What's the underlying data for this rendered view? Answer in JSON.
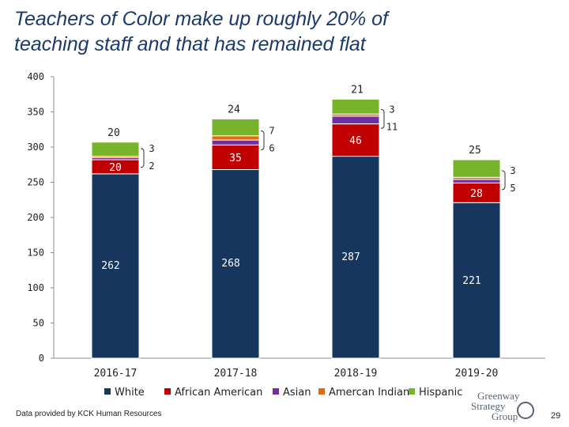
{
  "title_lines": [
    "Teachers of Color make up roughly 20% of",
    "teaching staff and that has remained flat"
  ],
  "source_note": "Data provided by KCK Human Resources",
  "logo": {
    "line1": "Greenway",
    "line2": "Strategy",
    "line3": "Group"
  },
  "page_number": "29",
  "colors": {
    "White": "#17365d",
    "African American": "#c00000",
    "Asian": "#7030a0",
    "Amercan Indian": "#e36c09",
    "Hispanic": "#77b32b"
  },
  "chart_data": {
    "type": "bar",
    "stacked": true,
    "title": "Teachers of Color make up roughly 20% of teaching staff and that has remained flat",
    "categories": [
      "2016-17",
      "2017-18",
      "2018-19",
      "2019-20"
    ],
    "ylim": [
      0,
      400
    ],
    "yticks": [
      0,
      50,
      100,
      150,
      200,
      250,
      300,
      350,
      400
    ],
    "ytick_labels": [
      "0",
      "50",
      "100",
      "150",
      "200",
      "250",
      "300",
      "350",
      "400"
    ],
    "grid": false,
    "legend_position": "bottom",
    "series": [
      {
        "name": "White",
        "values": [
          262,
          268,
          287,
          221
        ]
      },
      {
        "name": "African American",
        "values": [
          20,
          35,
          46,
          28
        ]
      },
      {
        "name": "Asian",
        "values": [
          3,
          7,
          11,
          5
        ]
      },
      {
        "name": "Amercan Indian",
        "values": [
          2,
          6,
          3,
          3
        ]
      },
      {
        "name": "Hispanic",
        "values": [
          20,
          24,
          21,
          25
        ]
      }
    ],
    "value_labels": {
      "White": [
        "262",
        "268",
        "287",
        "221"
      ],
      "African American": [
        "20",
        "35",
        "46",
        "28"
      ],
      "Hispanic": [
        "20",
        "24",
        "21",
        "25"
      ],
      "callouts": [
        {
          "top": "3",
          "bottom": "2"
        },
        {
          "top": "7",
          "bottom": "6"
        },
        {
          "top": "3",
          "bottom": "11"
        },
        {
          "top": "3",
          "bottom": "5"
        }
      ]
    }
  }
}
